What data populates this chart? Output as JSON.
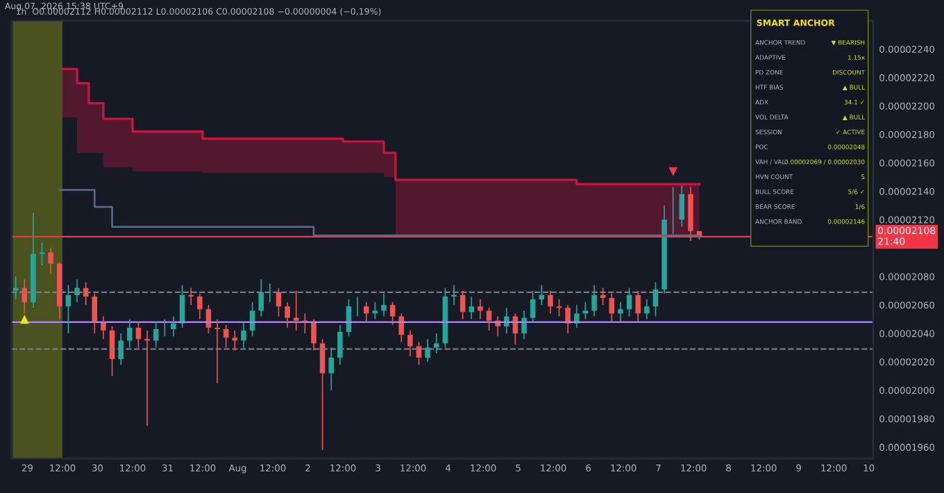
{
  "chart_data": [
    {
      "type": "candlestick",
      "subtitle": "1h  O0.00002112 H0.00002112 L0.00002106 C0.00002108 −0.00000004 (−0.19%)",
      "annotations": [
        "Aug 07, 2026 15:38 UTC+9",
        {
          "text": "▲",
          "x": "2026-07-28T23:00",
          "y": 2.054e-05
        },
        {
          "text": "▼",
          "x": "2026-08-07T05:00",
          "y": 2.15e-05
        }
      ],
      "x": [
        "2026-07-28T20:00",
        "2026-07-28T23:00",
        "2026-07-29T02:00",
        "2026-07-29T05:00",
        "2026-07-29T08:00",
        "2026-07-29T11:00",
        "2026-07-29T14:00",
        "2026-07-29T17:00",
        "2026-07-29T20:00",
        "2026-07-29T23:00",
        "2026-07-30T02:00",
        "2026-07-30T05:00",
        "2026-07-30T08:00",
        "2026-07-30T11:00",
        "2026-07-30T14:00",
        "2026-07-30T17:00",
        "2026-07-30T20:00",
        "2026-07-30T23:00",
        "2026-07-31T02:00",
        "2026-07-31T05:00",
        "2026-07-31T08:00",
        "2026-07-31T11:00",
        "2026-07-31T14:00",
        "2026-07-31T17:00",
        "2026-07-31T20:00",
        "2026-07-31T23:00",
        "2026-08-01T02:00",
        "2026-08-01T05:00",
        "2026-08-01T08:00",
        "2026-08-01T11:00",
        "2026-08-01T14:00",
        "2026-08-01T17:00",
        "2026-08-01T20:00",
        "2026-08-01T23:00",
        "2026-08-02T02:00",
        "2026-08-02T05:00",
        "2026-08-02T08:00",
        "2026-08-02T11:00",
        "2026-08-02T14:00",
        "2026-08-02T17:00",
        "2026-08-02T20:00",
        "2026-08-02T23:00",
        "2026-08-03T02:00",
        "2026-08-03T05:00",
        "2026-08-03T08:00",
        "2026-08-03T11:00",
        "2026-08-03T14:00",
        "2026-08-03T17:00",
        "2026-08-03T20:00",
        "2026-08-03T23:00",
        "2026-08-04T02:00",
        "2026-08-04T05:00",
        "2026-08-04T08:00",
        "2026-08-04T11:00",
        "2026-08-04T14:00",
        "2026-08-04T17:00",
        "2026-08-04T20:00",
        "2026-08-04T23:00",
        "2026-08-05T02:00",
        "2026-08-05T05:00",
        "2026-08-05T08:00",
        "2026-08-05T11:00",
        "2026-08-05T14:00",
        "2026-08-05T17:00",
        "2026-08-05T20:00",
        "2026-08-05T23:00",
        "2026-08-06T02:00",
        "2026-08-06T05:00",
        "2026-08-06T08:00",
        "2026-08-06T11:00",
        "2026-08-06T14:00",
        "2026-08-06T17:00",
        "2026-08-06T20:00",
        "2026-08-06T23:00",
        "2026-08-07T02:00",
        "2026-08-07T05:00",
        "2026-08-07T08:00",
        "2026-08-07T11:00",
        "2026-08-07T14:00"
      ],
      "ohlc": [
        [
          2.07e-05,
          2.08e-05,
          2.064e-05,
          2.072e-05
        ],
        [
          2.072e-05,
          2.078e-05,
          2.054e-05,
          2.062e-05
        ],
        [
          2.062e-05,
          2.125e-05,
          2.058e-05,
          2.096e-05
        ],
        [
          2.096e-05,
          2.104e-05,
          2.088e-05,
          2.097e-05
        ],
        [
          2.097e-05,
          2.1e-05,
          2.082e-05,
          2.089e-05
        ],
        [
          2.089e-05,
          2.09e-05,
          2.05e-05,
          2.059e-05
        ],
        [
          2.059e-05,
          2.074e-05,
          2.04e-05,
          2.067e-05
        ],
        [
          2.067e-05,
          2.078e-05,
          2.062e-05,
          2.072e-05
        ],
        [
          2.072e-05,
          2.076e-05,
          2.06e-05,
          2.066e-05
        ],
        [
          2.066e-05,
          2.068e-05,
          2.04e-05,
          2.048e-05
        ],
        [
          2.048e-05,
          2.052e-05,
          2.036e-05,
          2.042e-05
        ],
        [
          2.042e-05,
          2.045e-05,
          2.01e-05,
          2.022e-05
        ],
        [
          2.022e-05,
          2.04e-05,
          2.018e-05,
          2.035e-05
        ],
        [
          2.035e-05,
          2.05e-05,
          2.03e-05,
          2.044e-05
        ],
        [
          2.044e-05,
          2.048e-05,
          2.03e-05,
          2.036e-05
        ],
        [
          2.036e-05,
          2.042e-05,
          1.975e-05,
          2.035e-05
        ],
        [
          2.035e-05,
          2.048e-05,
          2.03e-05,
          2.043e-05
        ],
        [
          2.043e-05,
          2.05e-05,
          2.038e-05,
          2.043e-05
        ],
        [
          2.043e-05,
          2.052e-05,
          2.038e-05,
          2.047e-05
        ],
        [
          2.047e-05,
          2.074e-05,
          2.044e-05,
          2.067e-05
        ],
        [
          2.067e-05,
          2.072e-05,
          2.06e-05,
          2.066e-05
        ],
        [
          2.066e-05,
          2.068e-05,
          2.05e-05,
          2.057e-05
        ],
        [
          2.057e-05,
          2.06e-05,
          2.04e-05,
          2.044e-05
        ],
        [
          2.044e-05,
          2.05e-05,
          2.005e-05,
          2.043e-05
        ],
        [
          2.043e-05,
          2.046e-05,
          2.03e-05,
          2.037e-05
        ],
        [
          2.037e-05,
          2.042e-05,
          2.028e-05,
          2.035e-05
        ],
        [
          2.035e-05,
          2.048e-05,
          2.03e-05,
          2.042e-05
        ],
        [
          2.042e-05,
          2.062e-05,
          2.038e-05,
          2.056e-05
        ],
        [
          2.056e-05,
          2.078e-05,
          2.052e-05,
          2.069e-05
        ],
        [
          2.069e-05,
          2.075e-05,
          2.062e-05,
          2.069e-05
        ],
        [
          2.069e-05,
          2.072e-05,
          2.052e-05,
          2.059e-05
        ],
        [
          2.059e-05,
          2.062e-05,
          2.044e-05,
          2.051e-05
        ],
        [
          2.051e-05,
          2.07e-05,
          2.042e-05,
          2.049e-05
        ],
        [
          2.049e-05,
          2.054e-05,
          2.04e-05,
          2.048e-05
        ],
        [
          2.048e-05,
          2.05e-05,
          2.028e-05,
          2.033e-05
        ],
        [
          2.033e-05,
          2.036e-05,
          1.958e-05,
          2.012e-05
        ],
        [
          2.012e-05,
          2.03e-05,
          2e-05,
          2.023e-05
        ],
        [
          2.023e-05,
          2.046e-05,
          2.018e-05,
          2.041e-05
        ],
        [
          2.041e-05,
          2.064e-05,
          2.038e-05,
          2.059e-05
        ],
        [
          2.059e-05,
          2.066e-05,
          2.052e-05,
          2.059e-05
        ],
        [
          2.059e-05,
          2.062e-05,
          2.048e-05,
          2.054e-05
        ],
        [
          2.054e-05,
          2.062e-05,
          2.05e-05,
          2.056e-05
        ],
        [
          2.056e-05,
          2.068e-05,
          2.052e-05,
          2.06e-05
        ],
        [
          2.06e-05,
          2.062e-05,
          2.046e-05,
          2.052e-05
        ],
        [
          2.052e-05,
          2.054e-05,
          2.034e-05,
          2.039e-05
        ],
        [
          2.039e-05,
          2.042e-05,
          2.024e-05,
          2.031e-05
        ],
        [
          2.031e-05,
          2.034e-05,
          2.018e-05,
          2.023e-05
        ],
        [
          2.023e-05,
          2.036e-05,
          2.02e-05,
          2.03e-05
        ],
        [
          2.03e-05,
          2.04e-05,
          2.026e-05,
          2.033e-05
        ],
        [
          2.033e-05,
          2.072e-05,
          2.03e-05,
          2.066e-05
        ],
        [
          2.066e-05,
          2.074e-05,
          2.06e-05,
          2.067e-05
        ],
        [
          2.067e-05,
          2.07e-05,
          2.05e-05,
          2.055e-05
        ],
        [
          2.055e-05,
          2.066e-05,
          2.05e-05,
          2.059e-05
        ],
        [
          2.059e-05,
          2.064e-05,
          2.05e-05,
          2.056e-05
        ],
        [
          2.056e-05,
          2.058e-05,
          2.042e-05,
          2.049e-05
        ],
        [
          2.049e-05,
          2.052e-05,
          2.038e-05,
          2.045e-05
        ],
        [
          2.045e-05,
          2.058e-05,
          2.04e-05,
          2.052e-05
        ],
        [
          2.052e-05,
          2.054e-05,
          2.032e-05,
          2.04e-05
        ],
        [
          2.04e-05,
          2.056e-05,
          2.036e-05,
          2.051e-05
        ],
        [
          2.051e-05,
          2.07e-05,
          2.048e-05,
          2.064e-05
        ],
        [
          2.064e-05,
          2.074e-05,
          2.06e-05,
          2.067e-05
        ],
        [
          2.067e-05,
          2.07e-05,
          2.054e-05,
          2.059e-05
        ],
        [
          2.059e-05,
          2.064e-05,
          2.052e-05,
          2.058e-05
        ],
        [
          2.058e-05,
          2.06e-05,
          2.04e-05,
          2.047e-05
        ],
        [
          2.047e-05,
          2.06e-05,
          2.044e-05,
          2.054e-05
        ],
        [
          2.054e-05,
          2.062e-05,
          2.05e-05,
          2.056e-05
        ],
        [
          2.056e-05,
          2.074e-05,
          2.052e-05,
          2.067e-05
        ],
        [
          2.067e-05,
          2.072e-05,
          2.06e-05,
          2.065e-05
        ],
        [
          2.065e-05,
          2.068e-05,
          2.048e-05,
          2.054e-05
        ],
        [
          2.054e-05,
          2.062e-05,
          2.048e-05,
          2.057e-05
        ],
        [
          2.057e-05,
          2.072e-05,
          2.052e-05,
          2.067e-05
        ],
        [
          2.067e-05,
          2.07e-05,
          2.048e-05,
          2.054e-05
        ],
        [
          2.054e-05,
          2.064e-05,
          2.05e-05,
          2.059e-05
        ],
        [
          2.059e-05,
          2.076e-05,
          2.052e-05,
          2.071e-05
        ],
        [
          2.071e-05,
          2.13e-05,
          2.068e-05,
          2.12e-05
        ],
        [
          2.12e-05,
          2.143e-05,
          2.11e-05,
          2.12e-05
        ],
        [
          2.12e-05,
          2.144e-05,
          2.115e-05,
          2.138e-05
        ],
        [
          2.138e-05,
          2.143e-05,
          2.105e-05,
          2.112e-05
        ],
        [
          2.112e-05,
          2.112e-05,
          2.106e-05,
          2.108e-05
        ]
      ],
      "series": [
        {
          "type": "step",
          "color": "#c2183f",
          "x": [
            "2026-07-29T12:00",
            "2026-07-29T17:00",
            "2026-07-29T21:00",
            "2026-07-30T02:00",
            "2026-07-30T12:00",
            "2026-07-31T12:00",
            "2026-08-02T12:00",
            "2026-08-03T02:00",
            "2026-08-03T06:00",
            "2026-08-05T12:00",
            "2026-08-05T20:00",
            "2026-08-07T14:00"
          ],
          "values": [
            2.226e-05,
            2.216e-05,
            2.202e-05,
            2.191e-05,
            2.182e-05,
            2.177e-05,
            2.175e-05,
            2.167e-05,
            2.148e-05,
            2.148e-05,
            2.145e-05,
            2.145e-05
          ],
          "lower": [
            2.192e-05,
            2.167e-05,
            2.167e-05,
            2.157e-05,
            2.154e-05,
            2.153e-05,
            2.153e-05,
            2.15e-05,
            2.108e-05,
            2.108e-05,
            2.108e-05,
            2.108e-05
          ],
          "upper": [
            2.226e-05,
            2.216e-05,
            2.202e-05,
            2.191e-05,
            2.182e-05,
            2.177e-05,
            2.175e-05,
            2.167e-05,
            2.148e-05,
            2.148e-05,
            2.145e-05,
            2.145e-05
          ]
        },
        {
          "type": "step",
          "color": "#5d6b8a",
          "x": [
            "2026-07-29T11:00",
            "2026-07-29T23:00",
            "2026-07-30T05:00",
            "2026-08-02T02:00",
            "2026-08-07T14:00"
          ],
          "values": [
            2.141e-05,
            2.129e-05,
            2.115e-05,
            2.109e-05,
            2.107e-05
          ]
        }
      ],
      "ref_lines": [
        {
          "axis": "y",
          "value": 2.108e-05,
          "label": "0.00002108\n21:40",
          "color": "#f23645",
          "line_style": "solid"
        },
        {
          "axis": "y",
          "value": 2.048e-05,
          "color": "#b388ff",
          "line_style": "solid"
        },
        {
          "axis": "y",
          "value": 2.069e-05,
          "color": "#787b86",
          "line_style": "dashed"
        },
        {
          "axis": "y",
          "value": 2.029e-05,
          "color": "#787b86",
          "line_style": "dashed"
        }
      ],
      "bands": [
        {
          "axis": "x",
          "from": "2026-07-28T19:00",
          "to": "2026-07-29T12:00",
          "color": "#8a9a1a"
        }
      ],
      "xlim": [
        "2026-07-28T18:30",
        "2026-08-10T01:30"
      ],
      "xticks": [
        {
          "value": "2026-07-29",
          "label": "29"
        },
        {
          "value": "2026-07-29T12:00",
          "label": "12:00"
        },
        {
          "value": "2026-07-30",
          "label": "30"
        },
        {
          "value": "2026-07-30T12:00",
          "label": "12:00"
        },
        {
          "value": "2026-07-31",
          "label": "31"
        },
        {
          "value": "2026-07-31T12:00",
          "label": "12:00"
        },
        {
          "value": "2026-08-01",
          "label": "Aug"
        },
        {
          "value": "2026-08-01T12:00",
          "label": "12:00"
        },
        {
          "value": "2026-08-02",
          "label": "2"
        },
        {
          "value": "2026-08-02T12:00",
          "label": "12:00"
        },
        {
          "value": "2026-08-03",
          "label": "3"
        },
        {
          "value": "2026-08-03T12:00",
          "label": "12:00"
        },
        {
          "value": "2026-08-04",
          "label": "4"
        },
        {
          "value": "2026-08-04T12:00",
          "label": "12:00"
        },
        {
          "value": "2026-08-05",
          "label": "5"
        },
        {
          "value": "2026-08-05T12:00",
          "label": "12:00"
        },
        {
          "value": "2026-08-06",
          "label": "6"
        },
        {
          "value": "2026-08-06T12:00",
          "label": "12:00"
        },
        {
          "value": "2026-08-07",
          "label": "7"
        },
        {
          "value": "2026-08-07T12:00",
          "label": "12:00"
        },
        {
          "value": "2026-08-08",
          "label": "8"
        },
        {
          "value": "2026-08-08T12:00",
          "label": "12:00"
        },
        {
          "value": "2026-08-09",
          "label": "9"
        },
        {
          "value": "2026-08-09T12:00",
          "label": "12:00"
        },
        {
          "value": "2026-08-10",
          "label": "10"
        }
      ],
      "ylim": [
        1.952e-05,
        2.26e-05
      ],
      "yticks": [
        {
          "value": 1.96e-05,
          "label": "0.00001960"
        },
        {
          "value": 1.98e-05,
          "label": "0.00001980"
        },
        {
          "value": 2e-05,
          "label": "0.00002000"
        },
        {
          "value": 2.02e-05,
          "label": "0.00002020"
        },
        {
          "value": 2.04e-05,
          "label": "0.00002040"
        },
        {
          "value": 2.06e-05,
          "label": "0.00002060"
        },
        {
          "value": 2.08e-05,
          "label": "0.00002080"
        },
        {
          "value": 2.12e-05,
          "label": "0.00002120"
        },
        {
          "value": 2.14e-05,
          "label": "0.00002140"
        },
        {
          "value": 2.16e-05,
          "label": "0.00002160"
        },
        {
          "value": 2.18e-05,
          "label": "0.00002180"
        },
        {
          "value": 2.2e-05,
          "label": "0.00002200"
        },
        {
          "value": 2.22e-05,
          "label": "0.00002220"
        },
        {
          "value": 2.24e-05,
          "label": "0.00002240"
        }
      ]
    },
    {
      "type": "other",
      "title": "SMART ANCHOR",
      "annotations": [
        "ANCHOR TREND",
        "▼ BEARISH",
        "ADAPTIVE",
        "1.15x",
        "PD ZONE",
        "DISCOUNT",
        "HTF BIAS",
        "▲ BULL",
        "ADX",
        "34.1 ✓",
        "VOL DELTA",
        "▲ BULL",
        "SESSION",
        "✓ ACTIVE",
        "POC",
        "0.00002048",
        "VAH / VAL",
        "0.00002069 / 0.00002030",
        "HVN COUNT",
        "5",
        "BULL SCORE",
        "5/6 ✓",
        "BEAR SCORE",
        "1/6",
        "ANCHOR BAND",
        "0.00002146"
      ]
    }
  ]
}
